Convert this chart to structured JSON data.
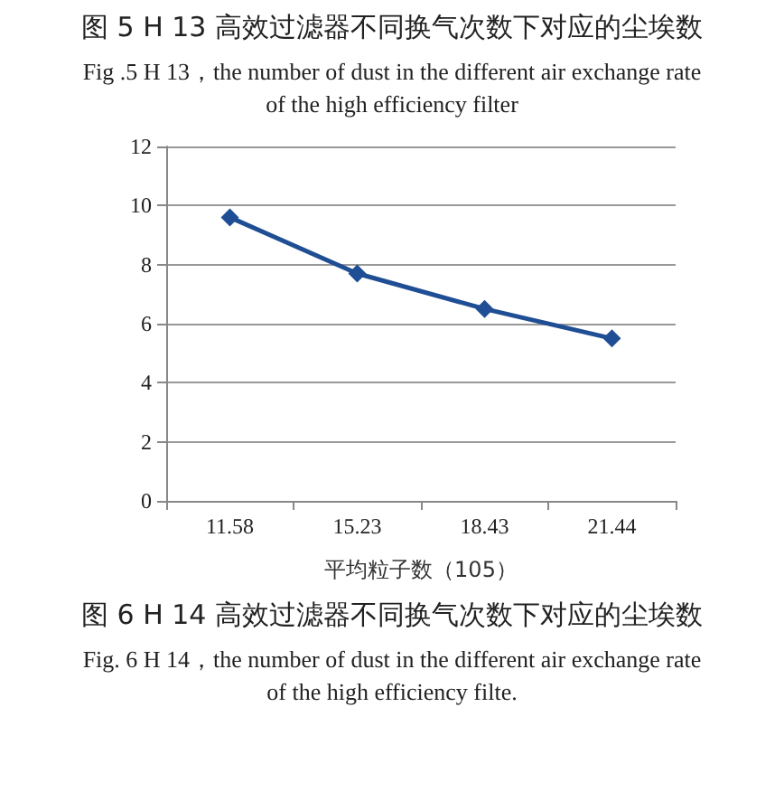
{
  "chart_data": {
    "type": "line",
    "title": "图 5  H 13  高效过滤器不同换气次数下对应的尘埃数",
    "subtitle": "Fig .5 H 13，the number of dust in the different air exchange rate of the high efficiency filter",
    "xlabel": "平均粒子数（105）",
    "categories": [
      "11.58",
      "15.23",
      "18.43",
      "21.44"
    ],
    "series": [
      {
        "color": "#1f4e94",
        "values": [
          9.6,
          7.7,
          6.5,
          5.5
        ]
      }
    ],
    "ylim": [
      0,
      12
    ],
    "yticks": [
      0,
      2,
      4,
      6,
      8,
      10,
      12
    ],
    "grid": "y",
    "marker": "diamond",
    "line_style": "solid",
    "annotations": [
      "图 6  H 14  高效过滤器不同换气次数下对应的尘埃数",
      "Fig. 6 H 14，the number of dust in the different air exchange rate of the high efficiency filte."
    ]
  }
}
